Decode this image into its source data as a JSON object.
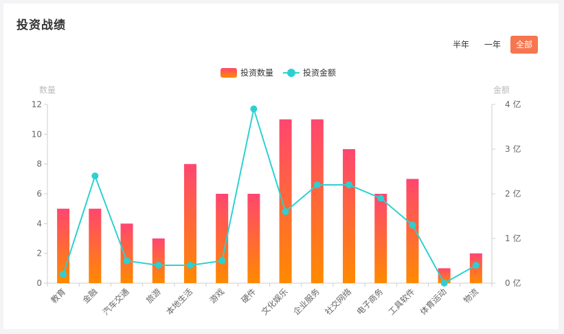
{
  "page": {
    "title": "投资战绩"
  },
  "range_tabs": {
    "half_year": "半年",
    "one_year": "一年",
    "all": "全部",
    "active": "all"
  },
  "colors": {
    "bar_top": "#ff4670",
    "bar_bottom": "#ff8a00",
    "line": "#2dd0d0",
    "axis_text": "#666666",
    "axis_name": "#bbbbbb",
    "axis_line": "#cccccc",
    "active_tab": "#f5764f"
  },
  "chart_data": {
    "type": "bar",
    "categories": [
      "教育",
      "金融",
      "汽车交通",
      "旅游",
      "本地生活",
      "游戏",
      "硬件",
      "文化娱乐",
      "企业服务",
      "社交网络",
      "电子商务",
      "工具软件",
      "体育运动",
      "物流"
    ],
    "series": [
      {
        "name": "投资数量",
        "type": "bar",
        "axis": "left",
        "values": [
          5,
          5,
          4,
          3,
          8,
          6,
          6,
          11,
          11,
          9,
          6,
          7,
          1,
          2
        ]
      },
      {
        "name": "投资金额",
        "type": "line",
        "axis": "right",
        "values": [
          0.2,
          2.4,
          0.5,
          0.4,
          0.4,
          0.5,
          3.9,
          1.6,
          2.2,
          2.2,
          1.9,
          1.3,
          0,
          0.4
        ]
      }
    ],
    "ylabel_left": "数量",
    "ylabel_right": "金额",
    "ylim_left": [
      0,
      12
    ],
    "yticks_left": [
      "0",
      "2",
      "4",
      "6",
      "8",
      "10",
      "12"
    ],
    "ylim_right": [
      0,
      4
    ],
    "yticks_right": [
      "0 亿",
      "1 亿",
      "2 亿",
      "3 亿",
      "4 亿"
    ],
    "legend_position": "top-center",
    "grid": false
  }
}
